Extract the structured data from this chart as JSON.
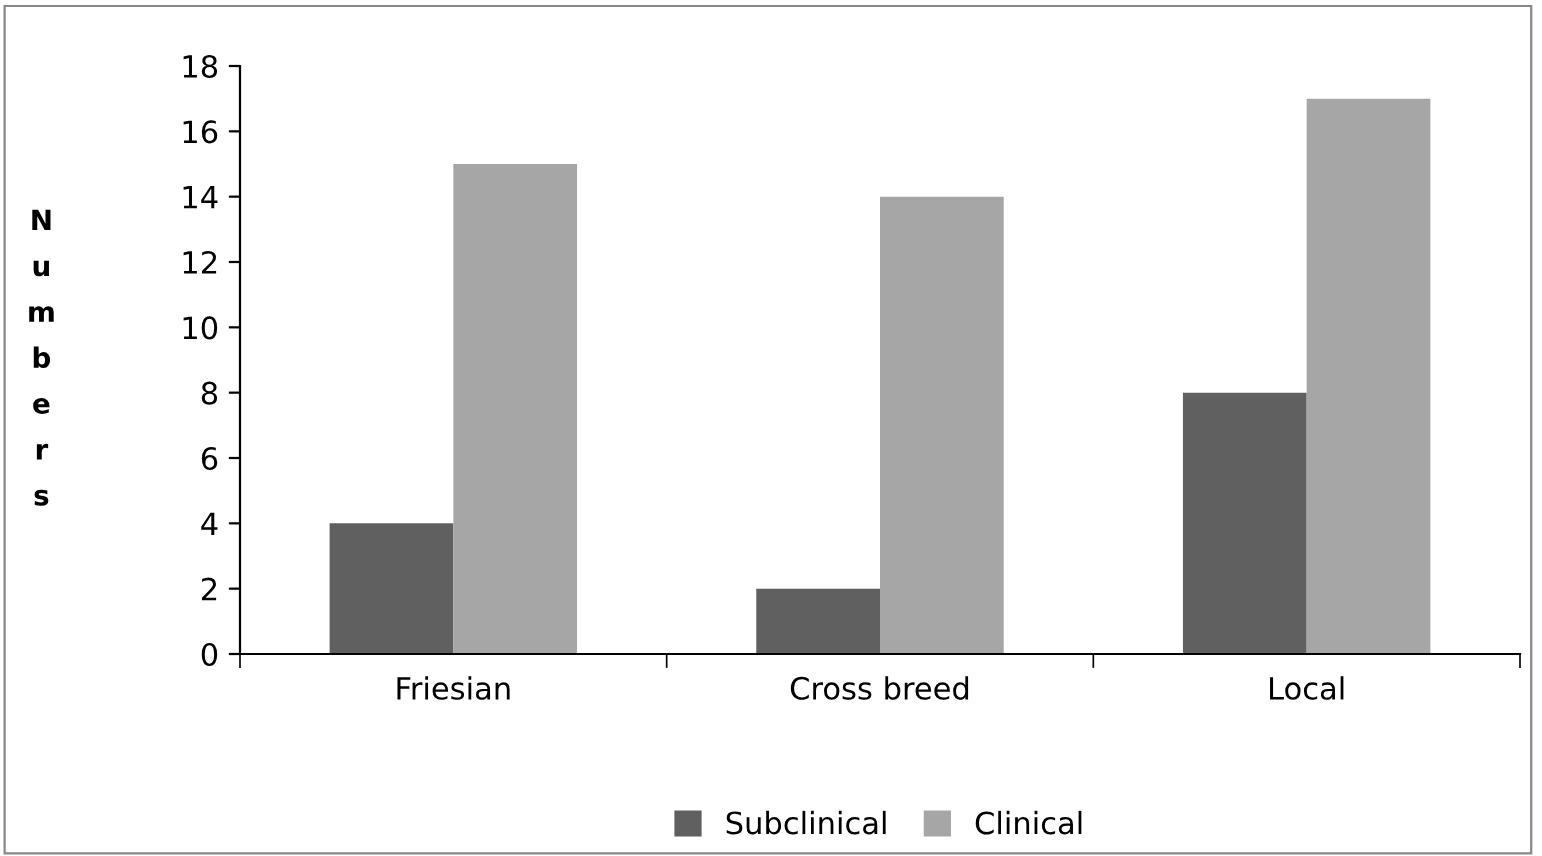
{
  "chart_data": {
    "type": "bar",
    "ylabel": "Numbers",
    "categories": [
      "Friesian",
      "Cross breed",
      "Local"
    ],
    "series": [
      {
        "name": "Subclinical",
        "color": "#606060",
        "values": [
          4,
          2,
          8
        ]
      },
      {
        "name": "Clinical",
        "color": "#a6a6a6",
        "values": [
          15,
          14,
          17
        ]
      }
    ],
    "ylim": [
      0,
      18
    ],
    "yticks": [
      0,
      2,
      4,
      6,
      8,
      10,
      12,
      14,
      16,
      18
    ],
    "grid": false,
    "legend": "bottom"
  }
}
